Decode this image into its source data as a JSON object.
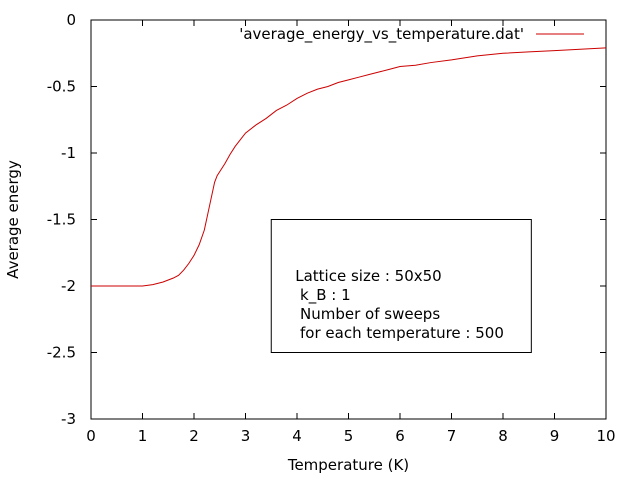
{
  "chart_data": {
    "type": "line",
    "xlabel": "Temperature (K)",
    "ylabel": "Average energy",
    "xlim": [
      0,
      10
    ],
    "ylim": [
      -3,
      0
    ],
    "xticks": [
      0,
      1,
      2,
      3,
      4,
      5,
      6,
      7,
      8,
      9,
      10
    ],
    "yticks": [
      0,
      -0.5,
      -1,
      -1.5,
      -2,
      -2.5,
      -3
    ],
    "xtick_labels": [
      "0",
      "1",
      "2",
      "3",
      "4",
      "5",
      "6",
      "7",
      "8",
      "9",
      "10"
    ],
    "ytick_labels": [
      "0",
      "-0.5",
      "-1",
      "-1.5",
      "-2",
      "-2.5",
      "-3"
    ],
    "grid": false,
    "legend_position": "top-right",
    "series": [
      {
        "name": "'average_energy_vs_temperature.dat'",
        "color": "#cc0000",
        "x": [
          0,
          0.2,
          0.4,
          0.6,
          0.8,
          1.0,
          1.2,
          1.4,
          1.6,
          1.7,
          1.8,
          1.9,
          2.0,
          2.1,
          2.2,
          2.3,
          2.4,
          2.45,
          2.5,
          2.6,
          2.7,
          2.8,
          2.9,
          3.0,
          3.2,
          3.4,
          3.6,
          3.8,
          4.0,
          4.2,
          4.4,
          4.6,
          4.8,
          5.0,
          5.2,
          5.4,
          5.6,
          5.8,
          6.0,
          6.3,
          6.6,
          7.0,
          7.5,
          8.0,
          8.5,
          9.0,
          9.5,
          10.0
        ],
        "y": [
          -2.0,
          -2.0,
          -2.0,
          -2.0,
          -2.0,
          -2.0,
          -1.99,
          -1.97,
          -1.94,
          -1.92,
          -1.88,
          -1.83,
          -1.77,
          -1.69,
          -1.58,
          -1.4,
          -1.22,
          -1.17,
          -1.14,
          -1.08,
          -1.01,
          -0.95,
          -0.9,
          -0.85,
          -0.79,
          -0.74,
          -0.68,
          -0.64,
          -0.59,
          -0.55,
          -0.52,
          -0.5,
          -0.47,
          -0.45,
          -0.43,
          -0.41,
          -0.39,
          -0.37,
          -0.35,
          -0.34,
          -0.32,
          -0.3,
          -0.27,
          -0.25,
          -0.24,
          -0.23,
          -0.22,
          -0.21
        ]
      }
    ],
    "annotation": {
      "lines": [
        "Lattice size : 50x50",
        " k_B : 1",
        " Number of sweeps",
        " for each temperature : 500"
      ],
      "box_x_range": [
        3.5,
        8.55
      ],
      "box_y_range": [
        -1.5,
        -2.5
      ]
    }
  }
}
